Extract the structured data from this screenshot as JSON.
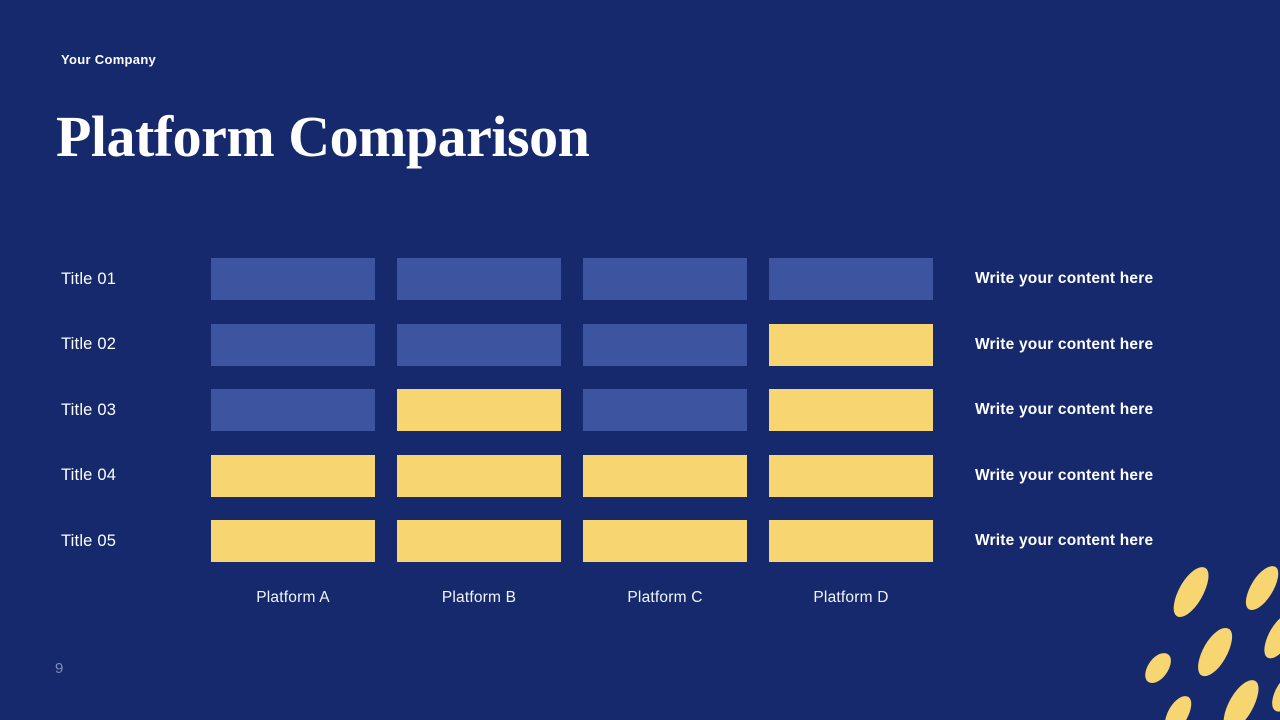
{
  "header": {
    "company": "Your Company",
    "title": "Platform Comparison"
  },
  "table": {
    "row_labels": [
      "Title 01",
      "Title 02",
      "Title 03",
      "Title 04",
      "Title 05"
    ],
    "column_labels": [
      "Platform A",
      "Platform B",
      "Platform C",
      "Platform D"
    ],
    "cell_colors": [
      [
        "blue",
        "blue",
        "blue",
        "blue"
      ],
      [
        "blue",
        "blue",
        "blue",
        "yellow"
      ],
      [
        "blue",
        "yellow",
        "blue",
        "yellow"
      ],
      [
        "yellow",
        "yellow",
        "yellow",
        "yellow"
      ],
      [
        "yellow",
        "yellow",
        "yellow",
        "yellow"
      ]
    ],
    "row_contents": [
      "Write your content here",
      "Write your content here",
      "Write your content here",
      "Write your content here",
      "Write your content here"
    ]
  },
  "footer": {
    "page_number": "9"
  },
  "colors": {
    "background": "#16296D",
    "cell_blue": "#3D54A0",
    "cell_yellow": "#F7D672",
    "text": "#FFFFFF"
  }
}
